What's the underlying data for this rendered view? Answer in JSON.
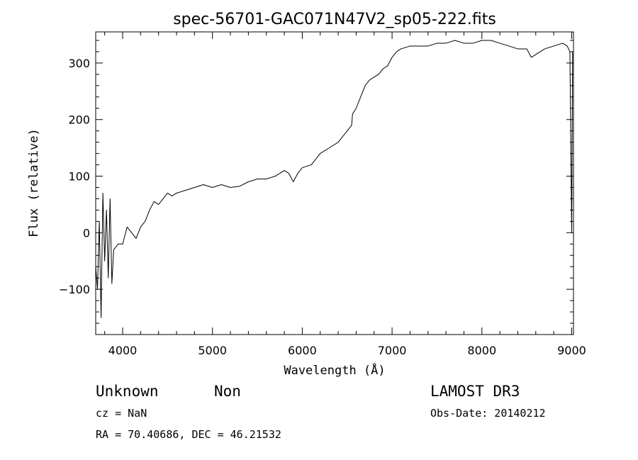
{
  "chart_data": {
    "type": "line",
    "title": "spec-56701-GAC071N47V2_sp05-222.fits",
    "xlabel": "Wavelength (Å)",
    "ylabel": "Flux (relative)",
    "xlim": [
      3700,
      9020
    ],
    "ylim": [
      -180,
      355
    ],
    "x_ticks": [
      4000,
      5000,
      6000,
      7000,
      8000,
      9000
    ],
    "y_ticks": [
      -100,
      0,
      100,
      200,
      300
    ],
    "x_tick_labels": [
      "4000",
      "5000",
      "6000",
      "7000",
      "8000",
      "9000"
    ],
    "y_tick_labels": [
      "−100",
      "0",
      "100",
      "200",
      "300"
    ],
    "grid": false,
    "line_color": "#000000",
    "series": [
      {
        "x": [
          3700,
          3720,
          3740,
          3760,
          3780,
          3800,
          3820,
          3840,
          3860,
          3880,
          3900,
          3950,
          4000,
          4050,
          4100,
          4150,
          4200,
          4250,
          4300,
          4350,
          4400,
          4450,
          4500,
          4550,
          4600,
          4700,
          4800,
          4900,
          5000,
          5100,
          5200,
          5300,
          5400,
          5500,
          5600,
          5700,
          5800,
          5850,
          5900,
          5950,
          6000,
          6100,
          6200,
          6300,
          6400,
          6500,
          6550,
          6560,
          6600,
          6650,
          6700,
          6750,
          6800,
          6850,
          6900,
          6950,
          7000,
          7050,
          7100,
          7200,
          7300,
          7400,
          7500,
          7600,
          7700,
          7800,
          7900,
          8000,
          8100,
          8200,
          8300,
          8400,
          8500,
          8550,
          8600,
          8650,
          8700,
          8800,
          8900,
          8950,
          8980,
          9000,
          9010
        ],
        "y": [
          -60,
          -100,
          20,
          -150,
          70,
          -50,
          40,
          -80,
          60,
          -90,
          -30,
          -20,
          -20,
          10,
          0,
          -10,
          10,
          20,
          40,
          55,
          50,
          60,
          70,
          65,
          70,
          75,
          80,
          85,
          80,
          85,
          80,
          82,
          90,
          95,
          95,
          100,
          110,
          105,
          90,
          105,
          115,
          120,
          140,
          150,
          160,
          180,
          190,
          210,
          220,
          240,
          260,
          270,
          275,
          280,
          290,
          295,
          310,
          320,
          325,
          330,
          330,
          330,
          335,
          335,
          340,
          335,
          335,
          340,
          340,
          335,
          330,
          325,
          325,
          310,
          315,
          320,
          325,
          330,
          335,
          330,
          320,
          0,
          320
        ]
      }
    ]
  },
  "info": {
    "class_text": "Unknown",
    "subclass_text": "Non",
    "cz_text": "cz = NaN",
    "coords_text": "RA =  70.40686, DEC =  46.21532",
    "survey_text": "LAMOST DR3",
    "obs_date_text": "Obs-Date: 20140212"
  }
}
